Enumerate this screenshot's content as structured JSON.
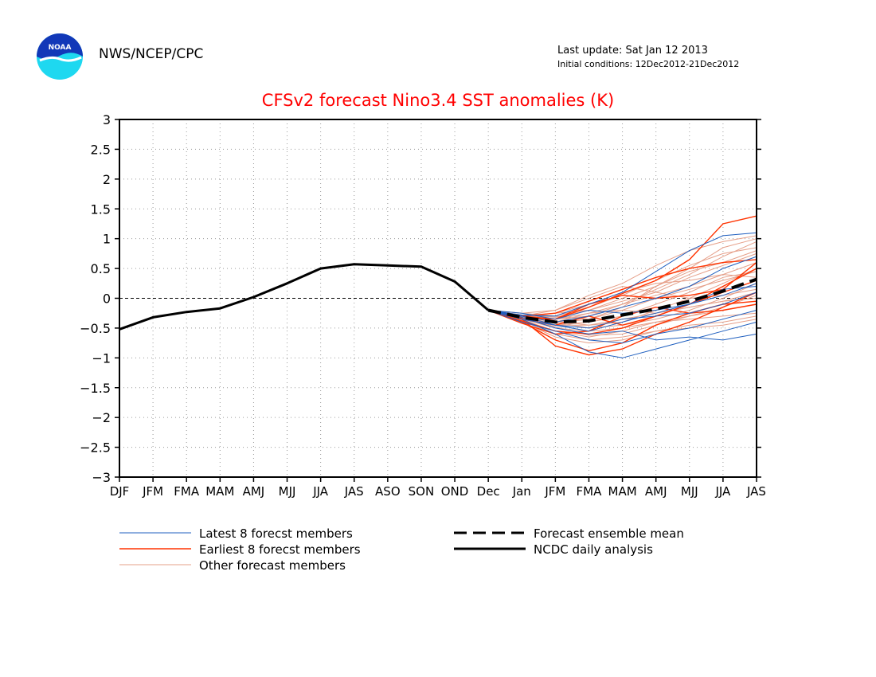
{
  "header": {
    "agency": "NWS/NCEP/CPC",
    "last_update": "Last update: Sat Jan 12 2013",
    "initial_conditions": "Initial conditions: 12Dec2012-21Dec2012",
    "logo_text": "NOAA"
  },
  "colors": {
    "title": "#ff0000",
    "latest": "#1f5fbf",
    "earliest": "#ff3300",
    "other": "#e6a08a",
    "analysis": "#000000",
    "logo_blue": "#1238b8",
    "logo_cyan": "#1ed8f0"
  },
  "chart_data": {
    "type": "line",
    "title": "CFSv2 forecast Nino3.4 SST anomalies (K)",
    "xlabel": "",
    "ylabel": "",
    "ylim": [
      -3,
      3
    ],
    "yticks": [
      "3",
      "2.5",
      "2",
      "1.5",
      "1",
      "0.5",
      "0",
      "−0.5",
      "−1",
      "−1.5",
      "−2",
      "−2.5",
      "−3"
    ],
    "ytick_values": [
      3,
      2.5,
      2,
      1.5,
      1,
      0.5,
      0,
      -0.5,
      -1,
      -1.5,
      -2,
      -2.5,
      -3
    ],
    "categories": [
      "DJF",
      "JFM",
      "FMA",
      "MAM",
      "AMJ",
      "MJJ",
      "JJA",
      "JAS",
      "ASO",
      "SON",
      "OND",
      "Dec",
      "Jan",
      "JFM",
      "FMA",
      "MAM",
      "AMJ",
      "MJJ",
      "JJA",
      "JAS"
    ],
    "grid": true,
    "legend": [
      {
        "label": "Latest 8 forecst members",
        "style": "thin-blue"
      },
      {
        "label": "Earliest 8 forecst members",
        "style": "thin-red"
      },
      {
        "label": "Other forecast members",
        "style": "thin-salmon"
      },
      {
        "label": "Forecast ensemble mean",
        "style": "thick-dashed-black"
      },
      {
        "label": "NCDC daily analysis",
        "style": "thick-black"
      }
    ],
    "analysis": [
      -0.52,
      -0.32,
      -0.23,
      -0.17,
      0.02,
      0.25,
      0.5,
      0.57,
      0.55,
      0.53,
      0.28,
      -0.2
    ],
    "ensemble_mean": [
      -0.2,
      -0.32,
      -0.4,
      -0.38,
      -0.28,
      -0.18,
      -0.05,
      0.12,
      0.32
    ],
    "forecast_start_index": 11,
    "latest_members": [
      [
        -0.2,
        -0.3,
        -0.45,
        -0.55,
        -0.4,
        -0.25,
        -0.1,
        0.15,
        0.2
      ],
      [
        -0.2,
        -0.35,
        -0.6,
        -0.9,
        -1.0,
        -0.85,
        -0.7,
        -0.55,
        -0.4
      ],
      [
        -0.2,
        -0.28,
        -0.3,
        -0.1,
        0.1,
        0.45,
        0.8,
        1.05,
        1.1
      ],
      [
        -0.2,
        -0.4,
        -0.55,
        -0.7,
        -0.75,
        -0.6,
        -0.5,
        -0.35,
        -0.2
      ],
      [
        -0.2,
        -0.3,
        -0.4,
        -0.3,
        -0.15,
        0.0,
        0.2,
        0.5,
        0.7
      ],
      [
        -0.2,
        -0.32,
        -0.5,
        -0.6,
        -0.55,
        -0.7,
        -0.65,
        -0.7,
        -0.6
      ],
      [
        -0.2,
        -0.25,
        -0.35,
        -0.2,
        -0.25,
        -0.2,
        -0.1,
        0.05,
        0.25
      ],
      [
        -0.2,
        -0.35,
        -0.45,
        -0.5,
        -0.35,
        -0.3,
        -0.25,
        -0.1,
        0.1
      ]
    ],
    "earliest_members": [
      [
        -0.2,
        -0.35,
        -0.8,
        -0.95,
        -0.85,
        -0.6,
        -0.4,
        -0.15,
        0.1
      ],
      [
        -0.2,
        -0.3,
        -0.35,
        -0.15,
        0.08,
        0.3,
        0.65,
        1.25,
        1.38
      ],
      [
        -0.2,
        -0.38,
        -0.55,
        -0.6,
        -0.5,
        -0.3,
        -0.1,
        0.2,
        0.5
      ],
      [
        -0.2,
        -0.33,
        -0.35,
        -0.1,
        0.05,
        0.0,
        0.05,
        0.15,
        0.6
      ],
      [
        -0.2,
        -0.4,
        -0.7,
        -0.88,
        -0.75,
        -0.45,
        -0.25,
        -0.1,
        -0.05
      ],
      [
        -0.2,
        -0.3,
        -0.25,
        -0.05,
        0.15,
        0.35,
        0.5,
        0.6,
        0.65
      ],
      [
        -0.2,
        -0.42,
        -0.6,
        -0.55,
        -0.3,
        -0.15,
        -0.25,
        -0.2,
        -0.1
      ],
      [
        -0.2,
        -0.35,
        -0.45,
        -0.3,
        -0.45,
        -0.3,
        -0.1,
        0.1,
        0.3
      ]
    ],
    "other_members": [
      [
        -0.2,
        -0.25,
        -0.2,
        0.05,
        0.25,
        0.55,
        0.8,
        0.95,
        1.05
      ],
      [
        -0.2,
        -0.3,
        -0.3,
        -0.15,
        0.05,
        0.3,
        0.55,
        0.75,
        0.85
      ],
      [
        -0.2,
        -0.28,
        -0.35,
        -0.3,
        -0.1,
        0.15,
        0.4,
        0.7,
        0.95
      ],
      [
        -0.2,
        -0.3,
        -0.25,
        -0.2,
        -0.05,
        0.1,
        0.35,
        0.55,
        0.75
      ],
      [
        -0.2,
        -0.35,
        -0.45,
        -0.4,
        -0.3,
        -0.1,
        0.1,
        0.35,
        0.45
      ],
      [
        -0.2,
        -0.3,
        -0.4,
        -0.5,
        -0.45,
        -0.35,
        -0.2,
        0.0,
        0.25
      ],
      [
        -0.2,
        -0.32,
        -0.48,
        -0.62,
        -0.6,
        -0.45,
        -0.3,
        -0.15,
        0.05
      ],
      [
        -0.2,
        -0.38,
        -0.6,
        -0.7,
        -0.65,
        -0.55,
        -0.5,
        -0.45,
        -0.35
      ],
      [
        -0.2,
        -0.3,
        -0.2,
        0.0,
        0.2,
        0.1,
        0.0,
        0.05,
        0.15
      ],
      [
        -0.2,
        -0.25,
        -0.3,
        -0.35,
        -0.2,
        -0.25,
        -0.15,
        -0.05,
        0.0
      ],
      [
        -0.2,
        -0.35,
        -0.5,
        -0.55,
        -0.5,
        -0.4,
        -0.3,
        -0.2,
        -0.1
      ],
      [
        -0.2,
        -0.3,
        -0.35,
        -0.25,
        -0.1,
        0.05,
        0.2,
        0.4,
        0.6
      ],
      [
        -0.2,
        -0.28,
        -0.38,
        -0.45,
        -0.4,
        -0.2,
        0.0,
        0.25,
        0.5
      ],
      [
        -0.2,
        -0.32,
        -0.42,
        -0.35,
        -0.15,
        0.2,
        0.45,
        0.6,
        0.8
      ],
      [
        -0.2,
        -0.36,
        -0.55,
        -0.65,
        -0.55,
        -0.4,
        -0.35,
        -0.3,
        -0.25
      ],
      [
        -0.2,
        -0.3,
        -0.25,
        -0.1,
        0.1,
        0.25,
        0.3,
        0.4,
        0.35
      ],
      [
        -0.2,
        -0.33,
        -0.45,
        -0.45,
        -0.35,
        -0.25,
        -0.15,
        -0.05,
        0.1
      ],
      [
        -0.2,
        -0.28,
        -0.32,
        -0.2,
        0.0,
        0.2,
        0.5,
        0.85,
        1.0
      ],
      [
        -0.2,
        -0.4,
        -0.65,
        -0.75,
        -0.7,
        -0.55,
        -0.45,
        -0.4,
        -0.3
      ],
      [
        -0.2,
        -0.3,
        -0.4,
        -0.25,
        -0.2,
        0.0,
        0.15,
        0.3,
        0.45
      ]
    ]
  }
}
